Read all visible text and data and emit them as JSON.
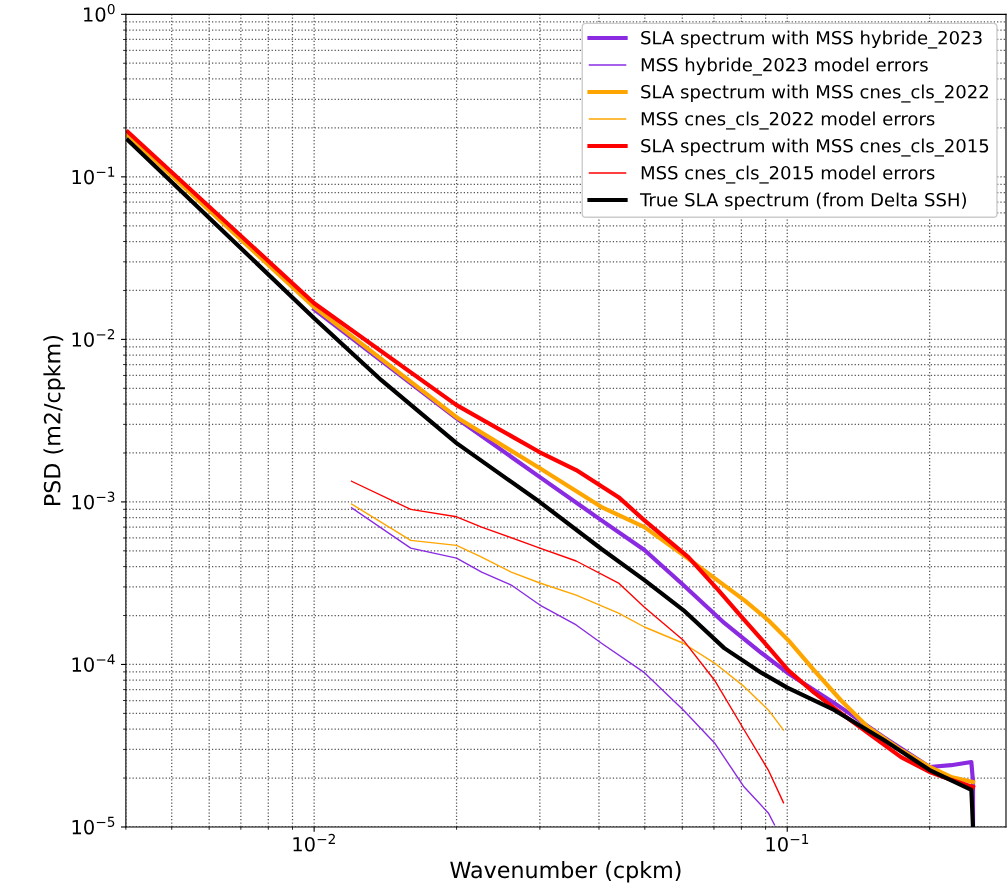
{
  "chart_data": {
    "type": "line",
    "xlabel": "Wavenumber (cpkm)",
    "ylabel": "PSD (m2/cpkm)",
    "log": "xy",
    "grid": true,
    "legend": "top right",
    "xlim": [
      0.004,
      0.29
    ],
    "ylim": [
      1e-05,
      1
    ],
    "xticks": [
      {
        "value": 0.01,
        "label": "10$^{−2}$"
      },
      {
        "value": 0.1,
        "label": "10$^{−1}$"
      }
    ],
    "yticks": [
      {
        "value": 1e-05,
        "label": "10$^{−5}$"
      },
      {
        "value": 0.0001,
        "label": "10$^{−4}$"
      },
      {
        "value": 0.001,
        "label": "10$^{−3}$"
      },
      {
        "value": 0.01,
        "label": "10$^{−2}$"
      },
      {
        "value": 0.1,
        "label": "10$^{−1}$"
      },
      {
        "value": 1,
        "label": "10$^{0}$"
      }
    ],
    "series": [
      {
        "name": "SLA spectrum with MSS hybride_2023",
        "color": "#8a2be2",
        "x": [
          0.01,
          0.02,
          0.03,
          0.0405,
          0.0499,
          0.0603,
          0.0736,
          0.0881,
          0.1,
          0.1256,
          0.16,
          0.2,
          0.222,
          0.245,
          0.247,
          0.247
        ],
        "values": [
          0.0153,
          0.00327,
          0.00142,
          0.00077,
          0.000506,
          0.000308,
          0.00018,
          0.000118,
          8.9e-05,
          5.8e-05,
          3.57e-05,
          2.34e-05,
          2.4e-05,
          2.51e-05,
          1.89e-05,
          1e-05
        ]
      },
      {
        "name": "MSS hybride_2023 model errors",
        "color": "#8a2be2",
        "x": [
          0.012,
          0.016,
          0.02,
          0.0226,
          0.0261,
          0.03,
          0.0358,
          0.0405,
          0.0499,
          0.0603,
          0.0702,
          0.0811,
          0.0912,
          0.094
        ],
        "values": [
          0.00092,
          0.00052,
          0.000451,
          0.00037,
          0.000308,
          0.000232,
          0.000175,
          0.000135,
          8.9e-05,
          5.25e-05,
          3.29e-05,
          1.76e-05,
          1.22e-05,
          1.03e-05
        ]
      },
      {
        "name": "SLA spectrum with MSS cnes_cls_2022",
        "color": "#ffa500",
        "x": [
          0.00404,
          0.01,
          0.02,
          0.03,
          0.0405,
          0.0499,
          0.0603,
          0.0702,
          0.0811,
          0.0912,
          0.1005,
          0.114,
          0.13,
          0.148,
          0.174,
          0.2,
          0.222,
          0.247
        ],
        "values": [
          0.18,
          0.0158,
          0.00332,
          0.00161,
          0.00093,
          0.0007,
          0.000471,
          0.00034,
          0.000249,
          0.000187,
          0.000141,
          9.2e-05,
          6e-05,
          4.12e-05,
          2.98e-05,
          2.34e-05,
          2.03e-05,
          1.89e-05
        ]
      },
      {
        "name": "MSS cnes_cls_2022 model errors",
        "color": "#ffa500",
        "x": [
          0.012,
          0.016,
          0.02,
          0.0226,
          0.0261,
          0.03,
          0.0358,
          0.044,
          0.0499,
          0.0603,
          0.0702,
          0.0811,
          0.0912,
          0.0982
        ],
        "values": [
          0.00097,
          0.00058,
          0.00054,
          0.000458,
          0.00037,
          0.000317,
          0.000267,
          0.000207,
          0.00017,
          0.000135,
          0.000102,
          7.3e-05,
          5.25e-05,
          3.95e-05
        ]
      },
      {
        "name": "SLA spectrum with MSS cnes_cls_2015",
        "color": "#ff0000",
        "x": [
          0.00404,
          0.01,
          0.02,
          0.03,
          0.0358,
          0.044,
          0.0499,
          0.0618,
          0.0715,
          0.0811,
          0.0912,
          0.1005,
          0.114,
          0.13,
          0.148,
          0.174,
          0.2,
          0.222,
          0.247
        ],
        "values": [
          0.189,
          0.0167,
          0.00394,
          0.00202,
          0.00157,
          0.00107,
          0.00077,
          0.000458,
          0.000287,
          0.000188,
          0.000128,
          9.2e-05,
          6.7e-05,
          5e-05,
          3.79e-05,
          2.69e-05,
          2.18e-05,
          1.95e-05,
          1.76e-05
        ]
      },
      {
        "name": "MSS cnes_cls_2015 model errors",
        "color": "#ff0000",
        "x": [
          0.012,
          0.016,
          0.02,
          0.0226,
          0.03,
          0.0358,
          0.044,
          0.0499,
          0.0603,
          0.0702,
          0.0811,
          0.0912,
          0.0982
        ],
        "values": [
          0.00134,
          0.0009,
          0.00081,
          0.0007,
          0.00052,
          0.000433,
          0.000317,
          0.000225,
          0.000141,
          8e-05,
          3.95e-05,
          2.24e-05,
          1.41e-05
        ]
      },
      {
        "name": "True SLA spectrum (from Delta SSH)",
        "color": "#000000",
        "x": [
          0.00404,
          0.00577,
          0.01,
          0.01387,
          0.02,
          0.03,
          0.0405,
          0.0499,
          0.0603,
          0.0736,
          0.0881,
          0.1,
          0.1256,
          0.16,
          0.2,
          0.245,
          0.247
        ],
        "values": [
          0.168,
          0.0623,
          0.0135,
          0.00561,
          0.0023,
          0.000998,
          0.000513,
          0.00033,
          0.000216,
          0.000126,
          8.9e-05,
          7.2e-05,
          5.25e-05,
          3.43e-05,
          2.24e-05,
          1.69e-05,
          1e-05
        ]
      }
    ]
  }
}
